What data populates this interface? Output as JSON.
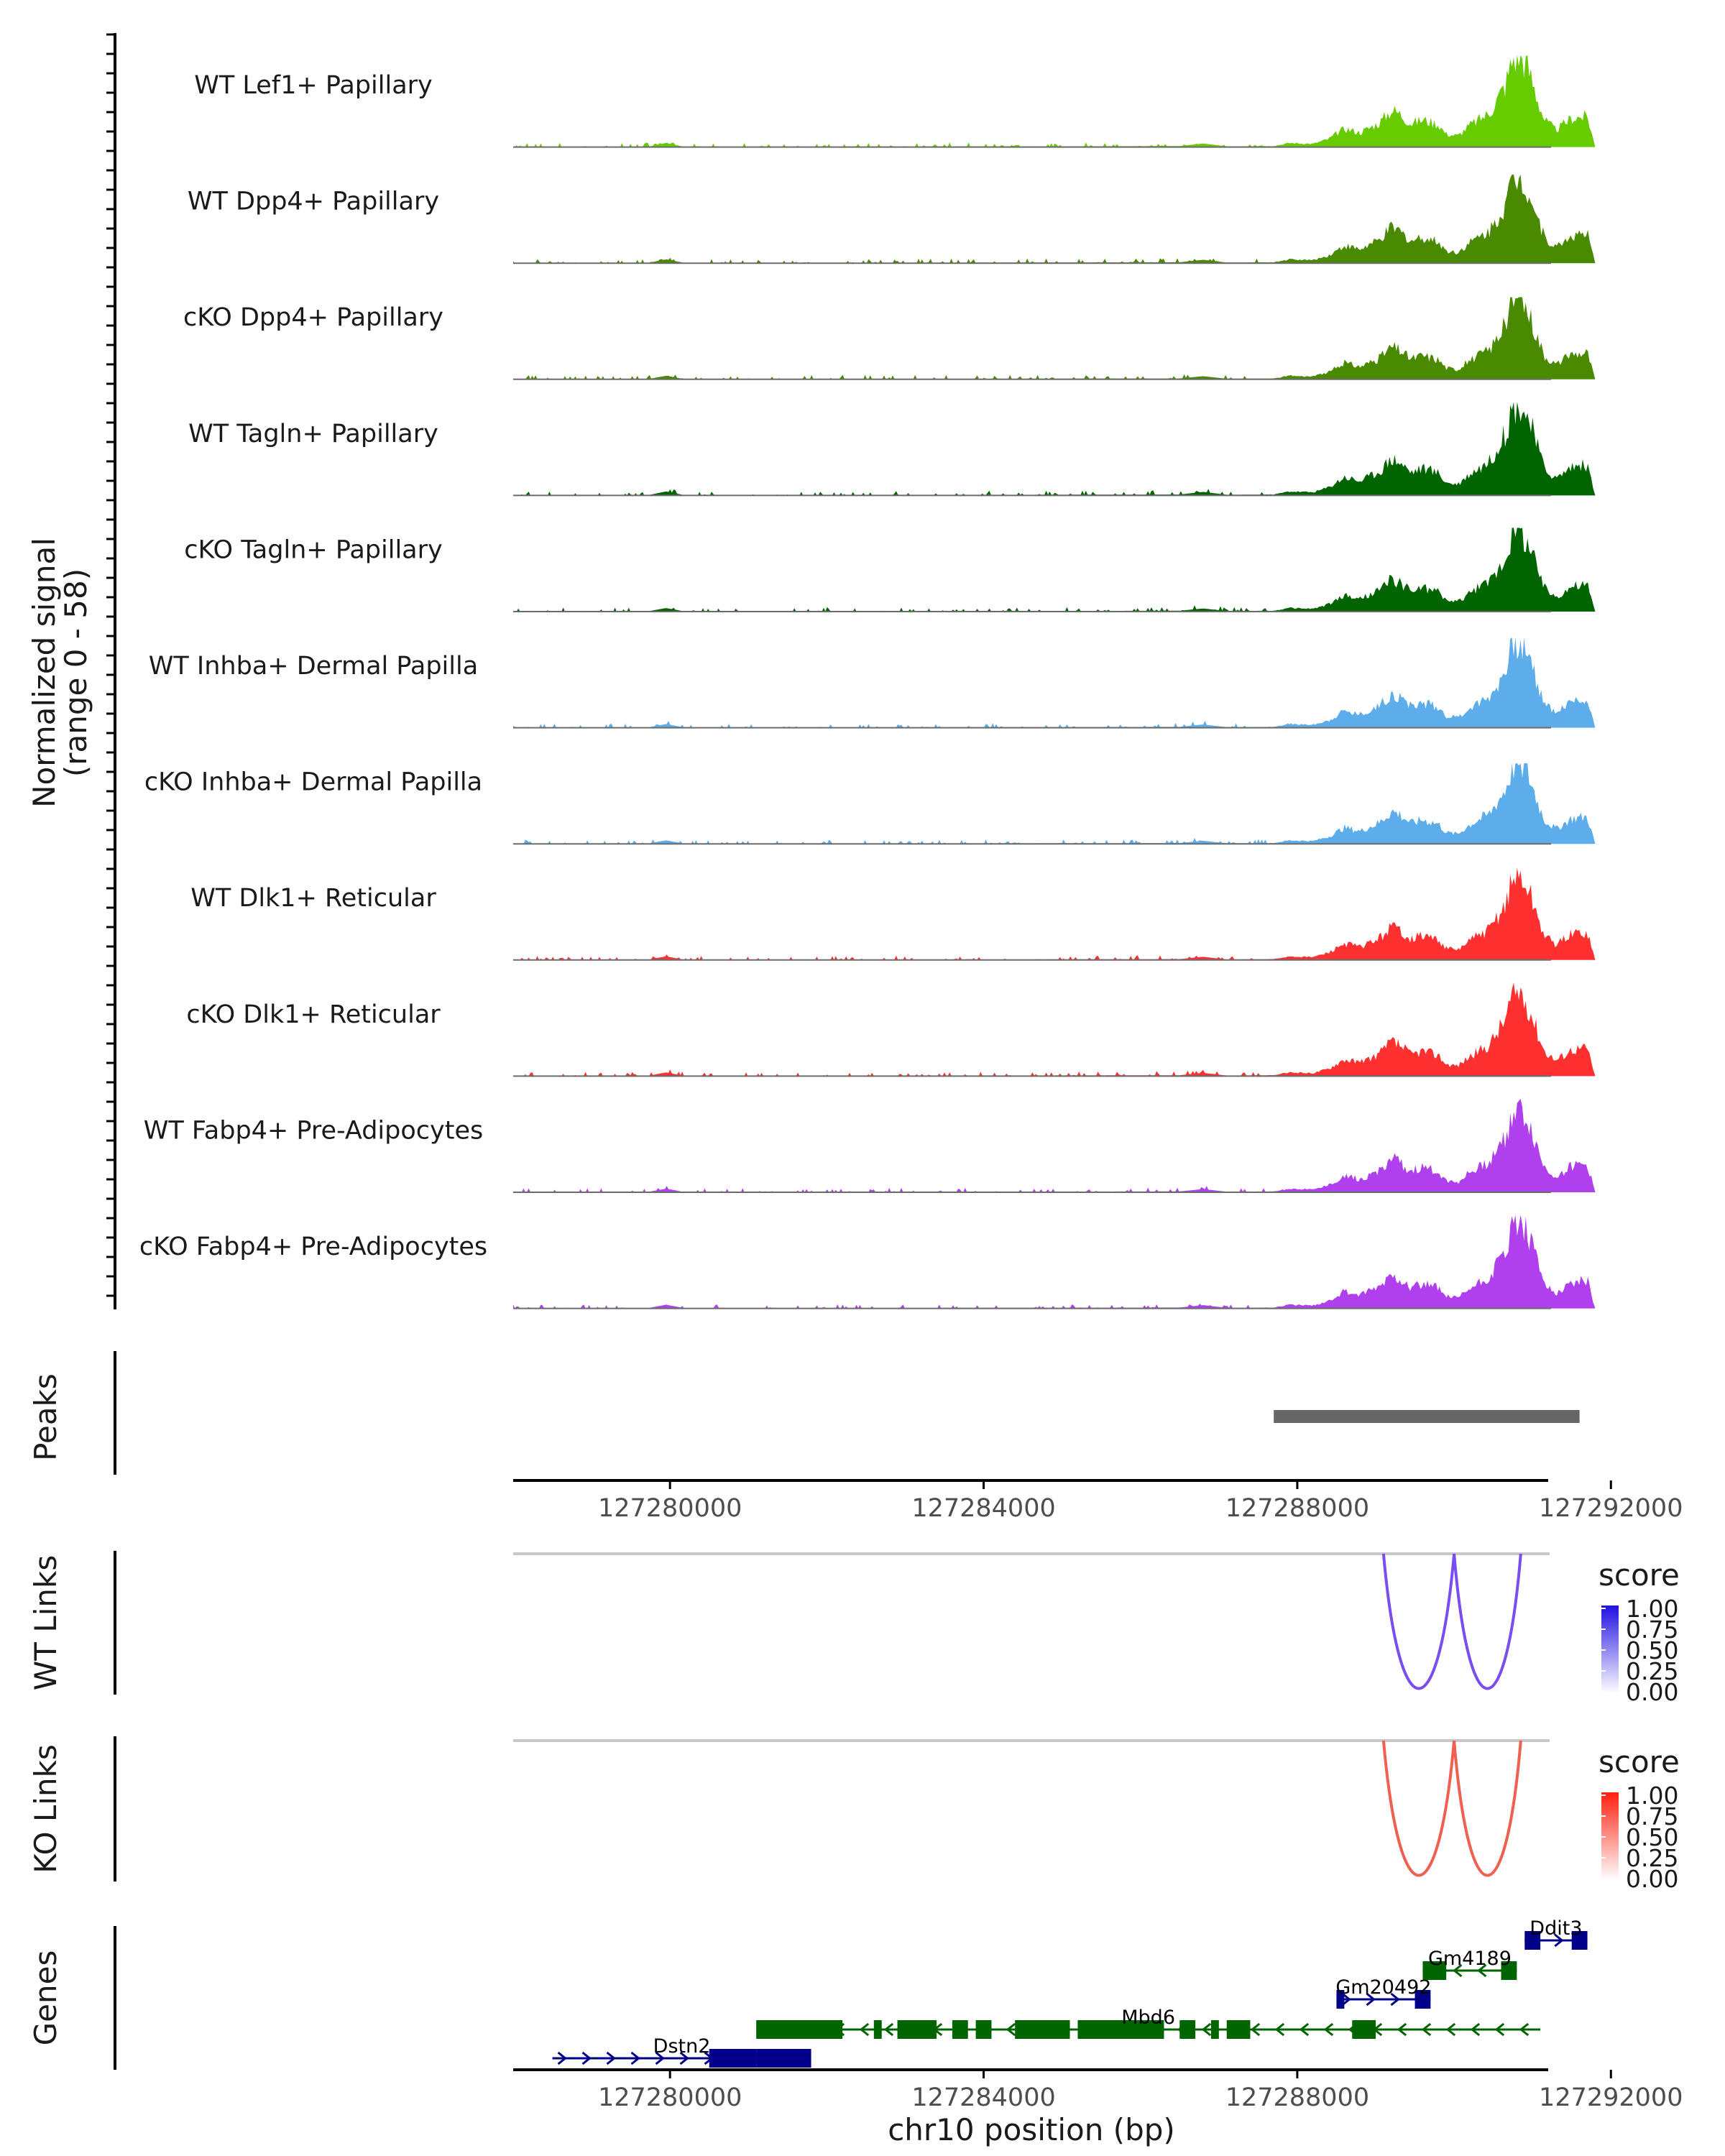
{
  "chart_data": {
    "type": "genome-browser",
    "y_axis_title": "Normalized signal",
    "y_axis_subtitle": "(range 0 - 58)",
    "y_range": [
      0,
      58
    ],
    "region": {
      "chrom": "chr10",
      "start": 127278000,
      "end": 127291200
    },
    "x_ticks": [
      127280000,
      127284000,
      127288000,
      127292000
    ],
    "x_axis_title": "chr10 position (bp)",
    "signal_profile": [
      {
        "x": 127278000,
        "y": 0
      },
      {
        "x": 127279700,
        "y": 0
      },
      {
        "x": 127279950,
        "y": 2.5
      },
      {
        "x": 127280200,
        "y": 0
      },
      {
        "x": 127286500,
        "y": 0.6
      },
      {
        "x": 127286800,
        "y": 2.2
      },
      {
        "x": 127287100,
        "y": 0.4
      },
      {
        "x": 127287700,
        "y": 0.6
      },
      {
        "x": 127287900,
        "y": 2.5
      },
      {
        "x": 127288200,
        "y": 2.0
      },
      {
        "x": 127288400,
        "y": 5.0
      },
      {
        "x": 127288600,
        "y": 11.5
      },
      {
        "x": 127288800,
        "y": 9.0
      },
      {
        "x": 127289050,
        "y": 15.0
      },
      {
        "x": 127289200,
        "y": 23.0
      },
      {
        "x": 127289300,
        "y": 21.0
      },
      {
        "x": 127289450,
        "y": 14.5
      },
      {
        "x": 127289600,
        "y": 17.0
      },
      {
        "x": 127289800,
        "y": 14.0
      },
      {
        "x": 127289900,
        "y": 8.0
      },
      {
        "x": 127290050,
        "y": 7.0
      },
      {
        "x": 127290200,
        "y": 13.5
      },
      {
        "x": 127290450,
        "y": 21.0
      },
      {
        "x": 127290650,
        "y": 38.0
      },
      {
        "x": 127290750,
        "y": 55.0
      },
      {
        "x": 127290850,
        "y": 57.0
      },
      {
        "x": 127290950,
        "y": 48.0
      },
      {
        "x": 127291050,
        "y": 32.0
      },
      {
        "x": 127291150,
        "y": 17.0
      },
      {
        "x": 127291300,
        "y": 10.5
      },
      {
        "x": 127291500,
        "y": 18.0
      },
      {
        "x": 127291700,
        "y": 19.0
      },
      {
        "x": 127291800,
        "y": 0
      }
    ],
    "tracks": [
      {
        "label": "WT Lef1+ Papillary",
        "color": "#66cc00",
        "scale": 1.0,
        "peak": 57
      },
      {
        "label": "WT Dpp4+ Papillary",
        "color": "#4a8a00",
        "scale": 0.95,
        "peak": 55
      },
      {
        "label": "cKO Dpp4+ Papillary",
        "color": "#4a8a00",
        "scale": 0.88,
        "peak": 51
      },
      {
        "label": "WT Tagln+ Papillary",
        "color": "#006400",
        "scale": 1.0,
        "peak": 58
      },
      {
        "label": "cKO Tagln+ Papillary",
        "color": "#006400",
        "scale": 0.88,
        "peak": 52
      },
      {
        "label": "WT Inhba+ Dermal Papilla",
        "color": "#5dadea",
        "scale": 0.92,
        "peak": 56
      },
      {
        "label": "cKO Inhba+ Dermal Papilla",
        "color": "#5dadea",
        "scale": 0.88,
        "peak": 50
      },
      {
        "label": "WT Dlk1+ Reticular",
        "color": "#ff3030",
        "scale": 0.9,
        "peak": 58
      },
      {
        "label": "cKO Dlk1+ Reticular",
        "color": "#ff3030",
        "scale": 0.92,
        "peak": 58
      },
      {
        "label": "WT Fabp4+ Pre-Adipocytes",
        "color": "#b040ee",
        "scale": 0.9,
        "peak": 58
      },
      {
        "label": "cKO Fabp4+ Pre-Adipocytes",
        "color": "#b040ee",
        "scale": 0.92,
        "peak": 58
      }
    ],
    "peaks_label": "Peaks",
    "peaks": [
      {
        "start": 127287700,
        "end": 127291600
      }
    ],
    "wt_links": {
      "label": "WT Links",
      "legend_title": "score",
      "legend_ticks": [
        "1.00",
        "0.75",
        "0.50",
        "0.25",
        "0.00"
      ],
      "color": "#7b4cf0",
      "arcs": [
        {
          "start": 127289100,
          "end": 127290000,
          "score": 0.6
        },
        {
          "start": 127290000,
          "end": 127290850,
          "score": 0.6
        }
      ]
    },
    "ko_links": {
      "label": "KO Links",
      "legend_title": "score",
      "legend_ticks": [
        "1.00",
        "0.75",
        "0.50",
        "0.25",
        "0.00"
      ],
      "color": "#f06050",
      "arcs": [
        {
          "start": 127289100,
          "end": 127290000,
          "score": 0.6
        },
        {
          "start": 127290000,
          "end": 127290850,
          "score": 0.6
        }
      ]
    },
    "genes_label": "Genes",
    "genes": [
      {
        "name": "Dstn2",
        "strand": "+",
        "start": 127278500,
        "end": 127281800,
        "exons": [
          [
            127280500,
            127281100
          ],
          [
            127281100,
            127281800
          ]
        ],
        "color": "#00008b",
        "row": 0
      },
      {
        "name": "Mbd6",
        "strand": "-",
        "start": 127281100,
        "end": 127291100,
        "exons": [
          [
            127281100,
            127282200
          ],
          [
            127282600,
            127282700
          ],
          [
            127282900,
            127283400
          ],
          [
            127283600,
            127283800
          ],
          [
            127283900,
            127284100
          ],
          [
            127284400,
            127285100
          ],
          [
            127285200,
            127286300
          ],
          [
            127286500,
            127286700
          ],
          [
            127286900,
            127287000
          ],
          [
            127287100,
            127287400
          ],
          [
            127288700,
            127289000
          ]
        ],
        "color": "#006400",
        "row": 1
      },
      {
        "name": "Gm20492",
        "strand": "+",
        "start": 127288500,
        "end": 127289700,
        "exons": [
          [
            127288500,
            127288600
          ],
          [
            127289500,
            127289700
          ]
        ],
        "color": "#00008b",
        "row": 2
      },
      {
        "name": "Gm4189",
        "strand": "-",
        "start": 127289600,
        "end": 127290800,
        "exons": [
          [
            127289600,
            127289900
          ],
          [
            127290600,
            127290800
          ]
        ],
        "color": "#006400",
        "row": 3
      },
      {
        "name": "Ddit3",
        "strand": "+",
        "start": 127290900,
        "end": 127291700,
        "exons": [
          [
            127290900,
            127291100
          ],
          [
            127291500,
            127291700
          ]
        ],
        "color": "#00008b",
        "row": 4
      }
    ]
  }
}
